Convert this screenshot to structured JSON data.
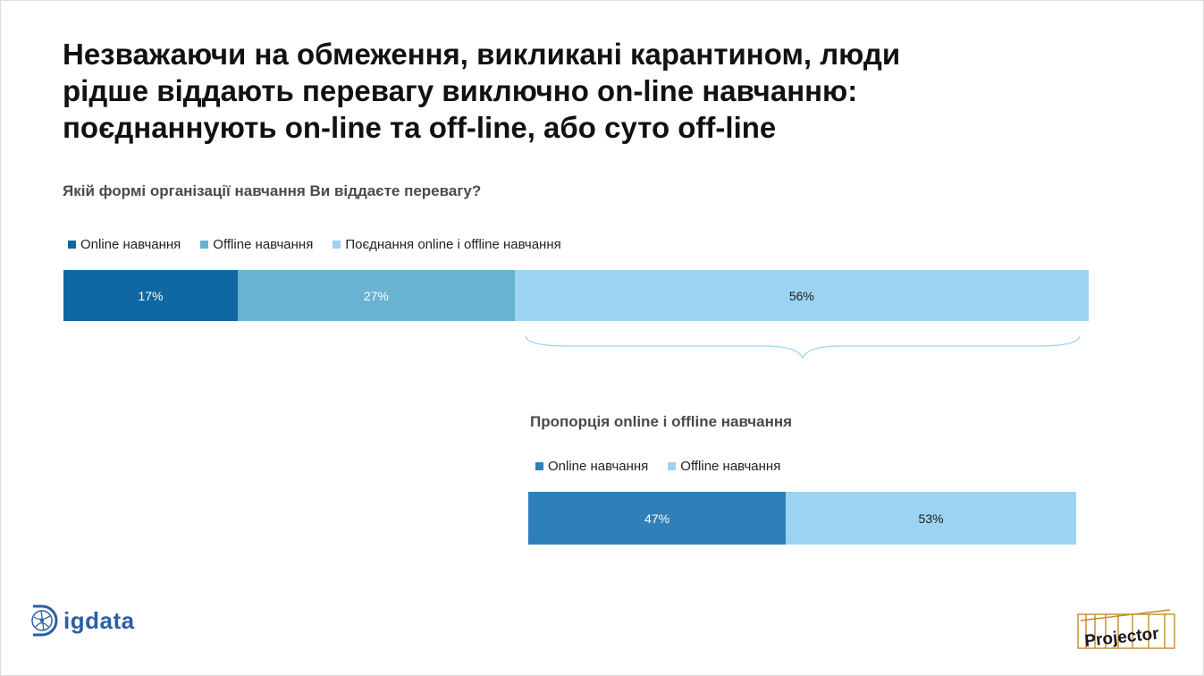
{
  "title_lines": [
    "Незважаючи на обмеження, викликані карантином, люди",
    "рідше віддають перевагу виключно on-line навчанню:",
    "поєднаннують on-line та off-line, або суто off-line"
  ],
  "chart_data": [
    {
      "type": "bar",
      "orientation": "horizontal-stacked-100",
      "title": "Якій формі організації навчання Ви віддаєте перевагу?",
      "categories": [
        ""
      ],
      "series": [
        {
          "name": "Online навчання",
          "values": [
            17
          ],
          "label": "17%",
          "color": "#0f68a3"
        },
        {
          "name": "Offline навчання",
          "values": [
            27
          ],
          "label": "27%",
          "color": "#68b3d1"
        },
        {
          "name": "Поєднання online і offline навчання",
          "values": [
            56
          ],
          "label": "56%",
          "color": "#9dd3f2"
        }
      ],
      "legend": "top-left",
      "grid": false
    },
    {
      "type": "bar",
      "orientation": "horizontal-stacked-100",
      "title": "Пропорція online і offline навчання",
      "categories": [
        ""
      ],
      "series": [
        {
          "name": "Online навчання",
          "values": [
            47
          ],
          "label": "47%",
          "color": "#2f7fb8"
        },
        {
          "name": "Offline навчання",
          "values": [
            53
          ],
          "label": "53%",
          "color": "#9dd3f2"
        }
      ],
      "legend": "top-left",
      "grid": false
    }
  ],
  "logos": {
    "left": {
      "name": "igdata",
      "color": "#2b5fa4"
    },
    "right": {
      "name": "Projector",
      "color": "#c48a2a"
    }
  }
}
